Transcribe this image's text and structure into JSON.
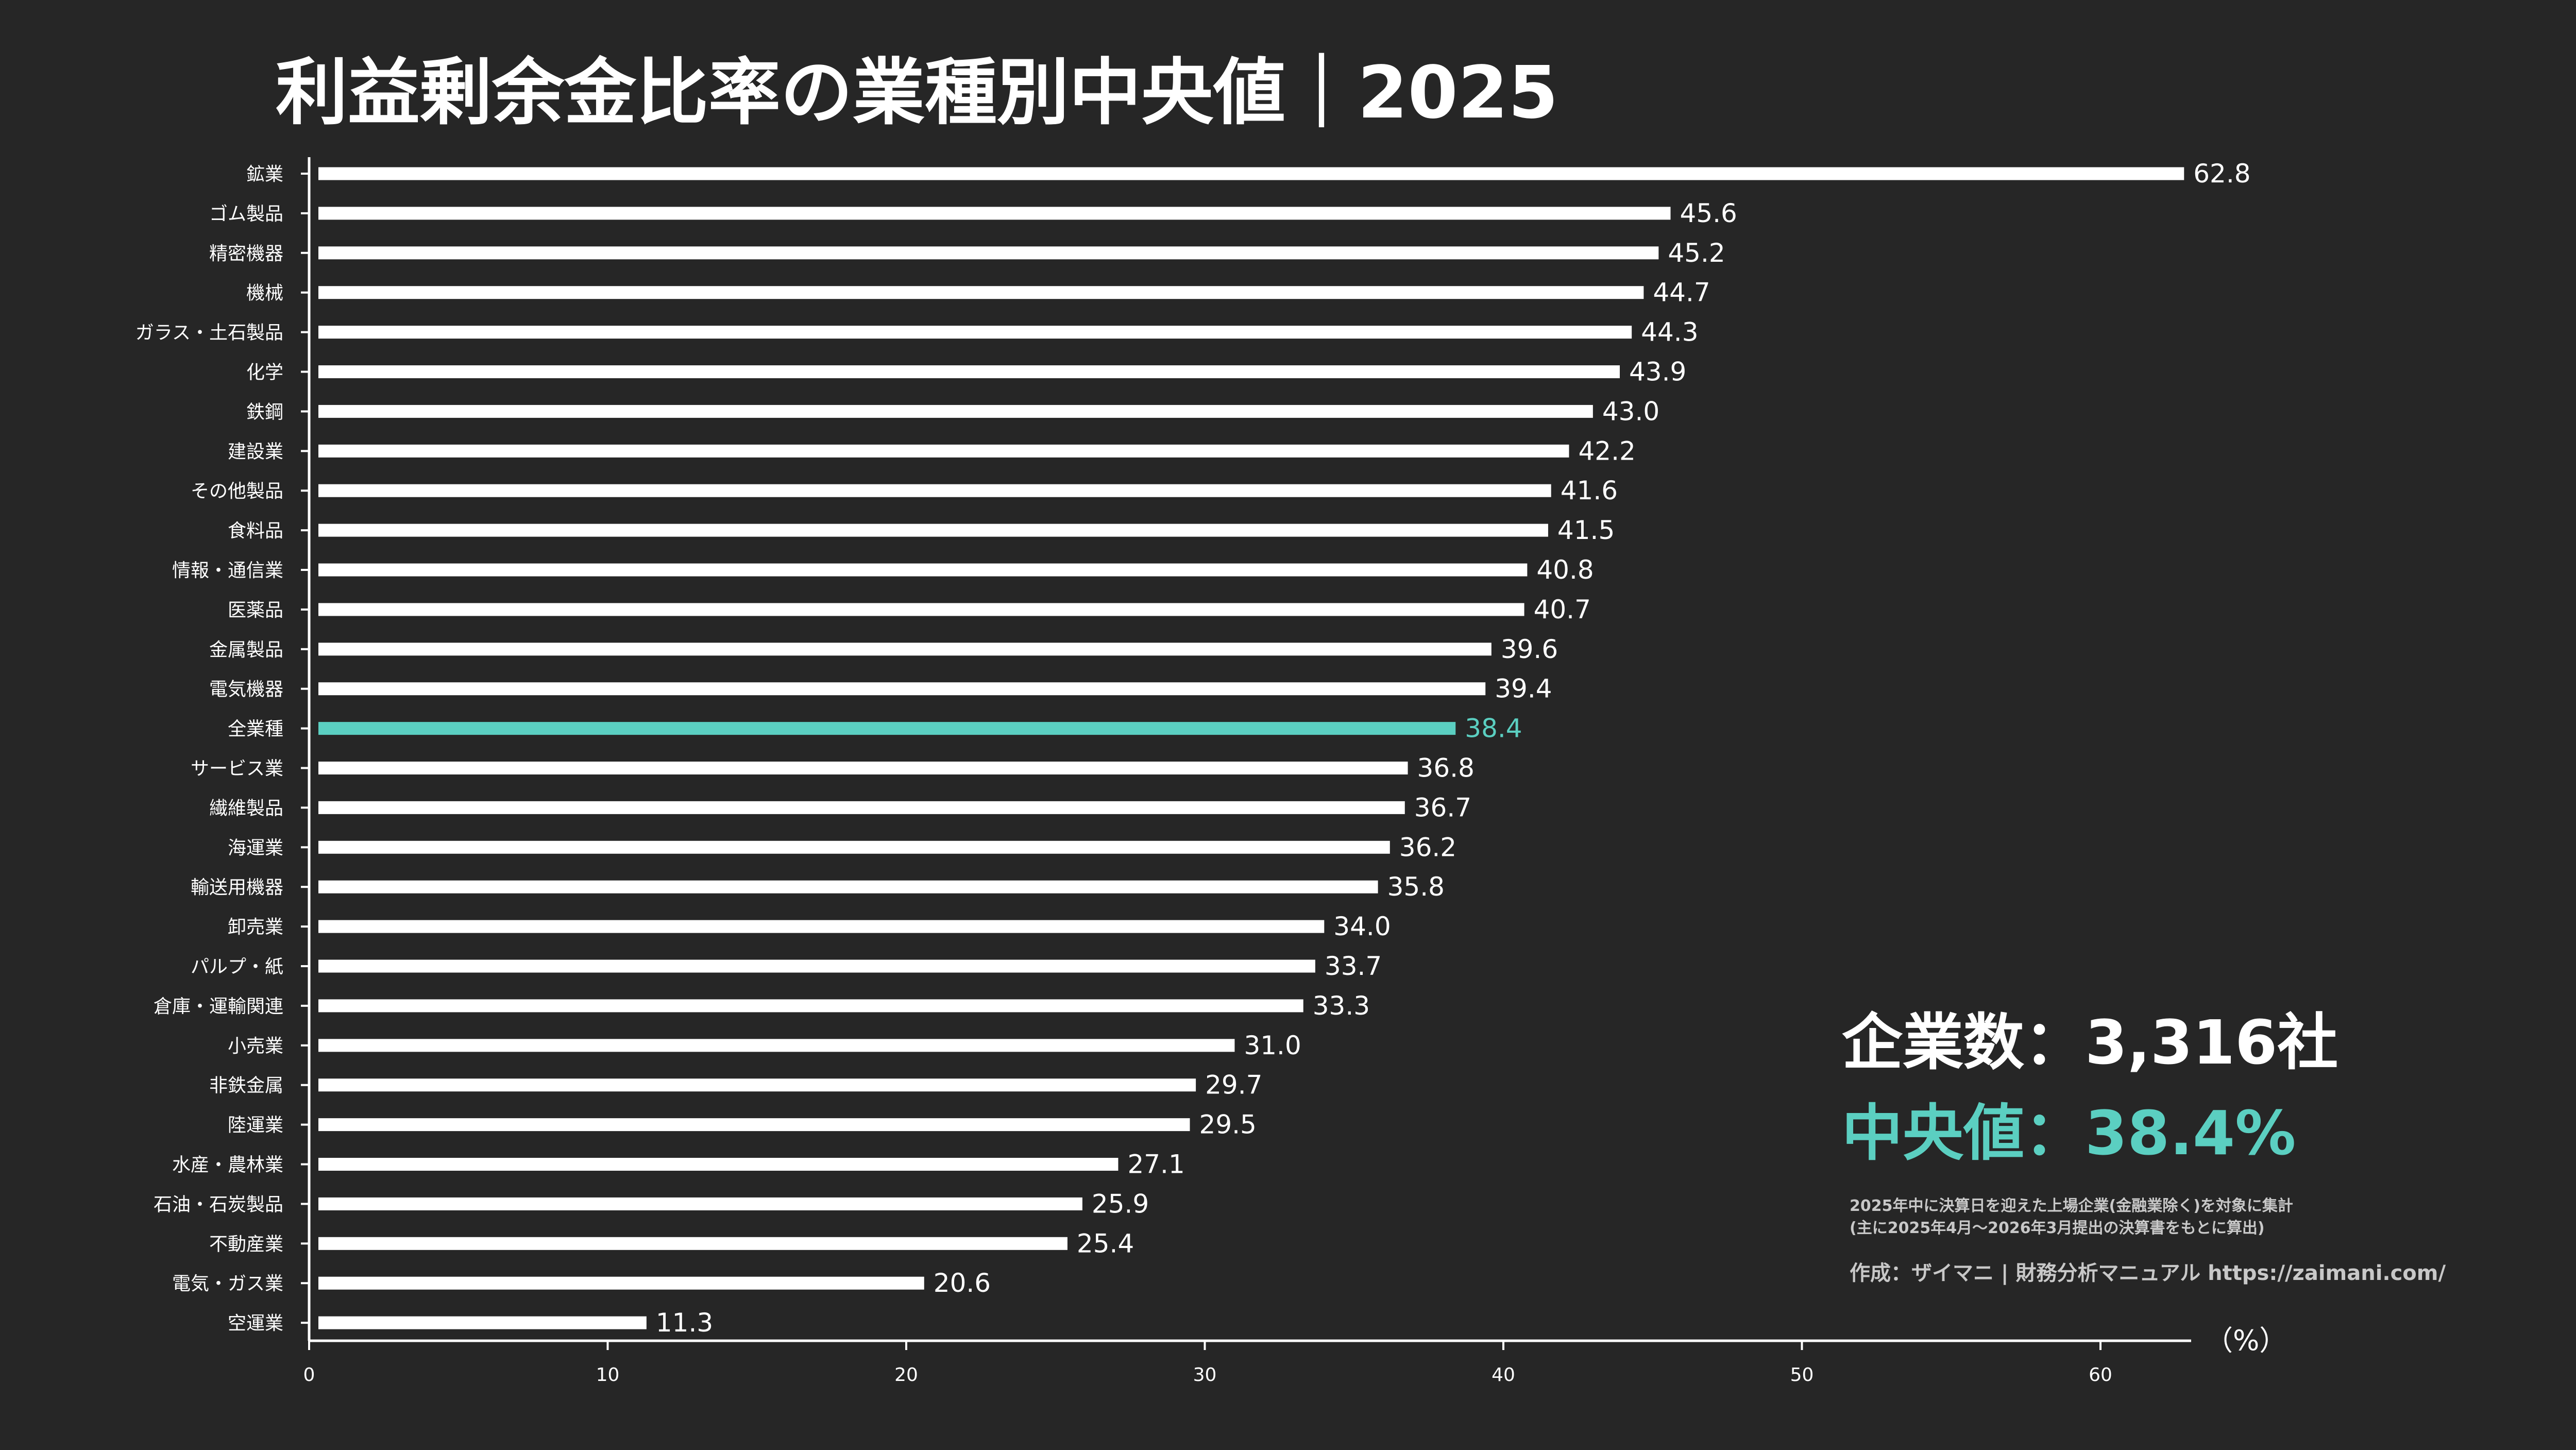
{
  "chart_data": {
    "type": "bar",
    "orientation": "horizontal",
    "title": "利益剰余金比率の業種別中央値｜2025",
    "unit_label": "（%）",
    "xlim": [
      0,
      63
    ],
    "xticks": [
      0,
      10,
      20,
      30,
      40,
      50,
      60
    ],
    "grid": false,
    "categories": [
      "鉱業",
      "ゴム製品",
      "精密機器",
      "機械",
      "ガラス・土石製品",
      "化学",
      "鉄鋼",
      "建設業",
      "その他製品",
      "食料品",
      "情報・通信業",
      "医薬品",
      "金属製品",
      "電気機器",
      "全業種",
      "サービス業",
      "繊維製品",
      "海運業",
      "輸送用機器",
      "卸売業",
      "パルプ・紙",
      "倉庫・運輸関連",
      "小売業",
      "非鉄金属",
      "陸運業",
      "水産・農林業",
      "石油・石炭製品",
      "不動産業",
      "電気・ガス業",
      "空運業"
    ],
    "values": [
      62.8,
      45.6,
      45.2,
      44.7,
      44.3,
      43.9,
      43.0,
      42.2,
      41.6,
      41.5,
      40.8,
      40.7,
      39.6,
      39.4,
      38.4,
      36.8,
      36.7,
      36.2,
      35.8,
      34.0,
      33.7,
      33.3,
      31.0,
      29.7,
      29.5,
      27.1,
      25.9,
      25.4,
      20.6,
      11.3
    ],
    "value_labels": [
      "62.8",
      "45.6",
      "45.2",
      "44.7",
      "44.3",
      "43.9",
      "43.0",
      "42.2",
      "41.6",
      "41.5",
      "40.8",
      "40.7",
      "39.6",
      "39.4",
      "38.4",
      "36.8",
      "36.7",
      "36.2",
      "35.8",
      "34.0",
      "33.7",
      "33.3",
      "31.0",
      "29.7",
      "29.5",
      "27.1",
      "25.9",
      "25.4",
      "20.6",
      "11.3"
    ],
    "highlight_category": "全業種",
    "colors": {
      "background": "#262626",
      "bar": "#ffffff",
      "highlight": "#5bcfc1",
      "text": "#ffffff",
      "note": "#c8c8c8"
    }
  },
  "info": {
    "company_count": "企業数：3,316社",
    "median": "中央値：38.4%",
    "note_line1": "2025年中に決算日を迎えた上場企業(金融業除く)を対象に集計",
    "note_line2": "(主に2025年4月～2026年3月提出の決算書をもとに算出)",
    "credit": "作成：ザイマニ | 財務分析マニュアル https://zaimani.com/"
  }
}
